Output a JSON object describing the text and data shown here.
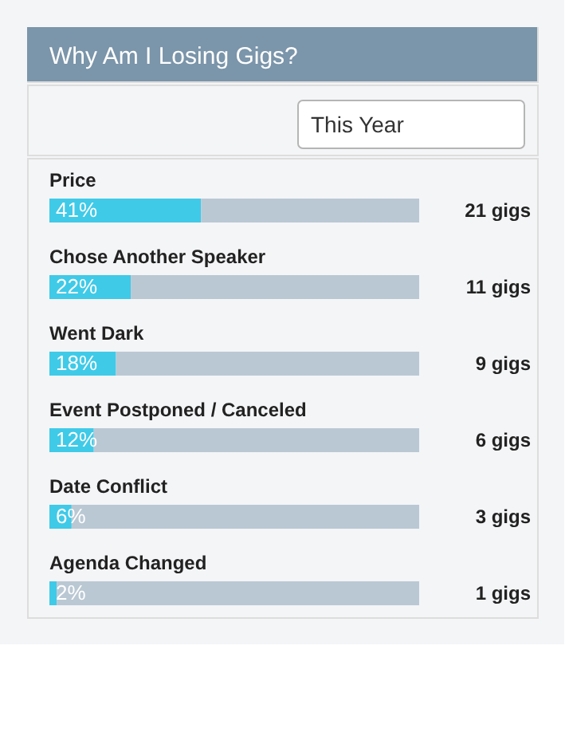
{
  "chart_data": {
    "type": "bar",
    "orientation": "horizontal",
    "stacked": true,
    "title": "Why Am I Losing Gigs?",
    "categories": [
      "Price",
      "Chose Another Speaker",
      "Went Dark",
      "Event Postponed / Canceled",
      "Date Conflict",
      "Agenda Changed"
    ],
    "xlim": [
      0,
      100
    ],
    "tick_labels": "y",
    "legend": false,
    "series": [
      {
        "color": "#3fcae8",
        "values": [
          41,
          22,
          18,
          12,
          6,
          2
        ],
        "value_labels": [
          "41%",
          "22%",
          "18%",
          "12%",
          "6%",
          "2%"
        ]
      },
      {
        "color": "#bac8d4",
        "values": [
          59,
          78,
          82,
          88,
          94,
          98
        ]
      }
    ],
    "annotations": [
      "This Year",
      "21 gigs",
      "11 gigs",
      "9 gigs",
      "6 gigs",
      "3 gigs",
      "1 gigs"
    ]
  }
}
